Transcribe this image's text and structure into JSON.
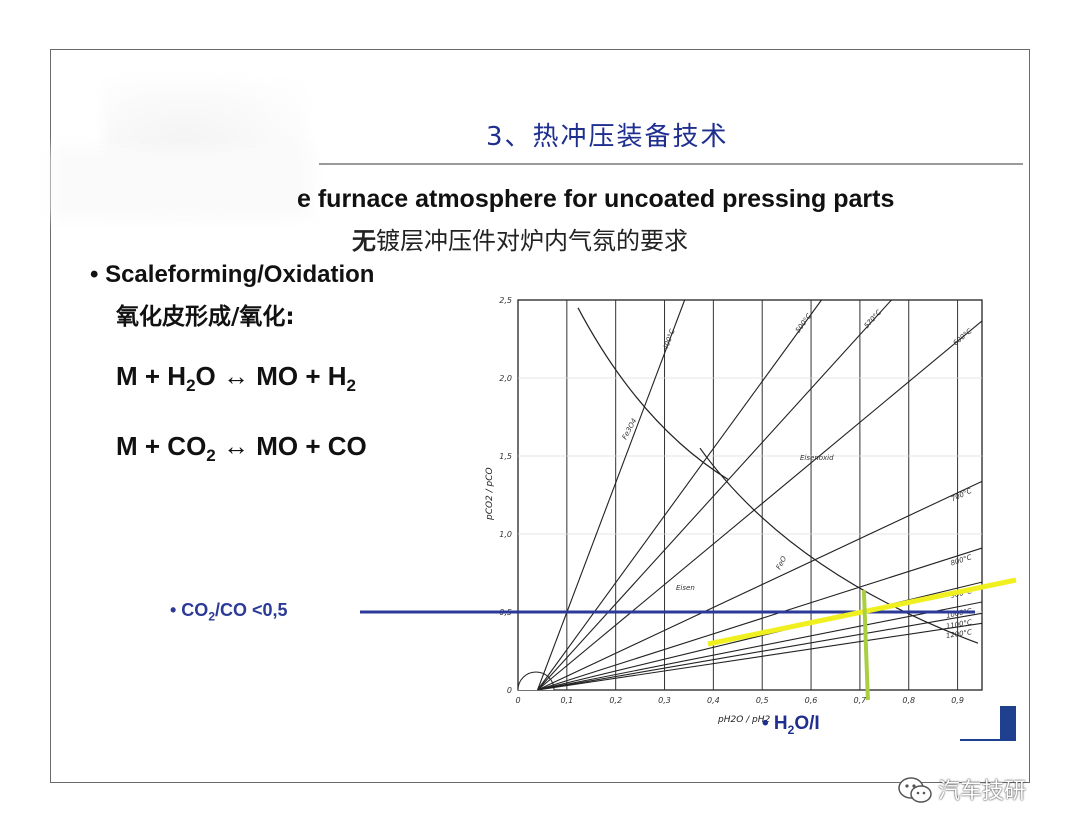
{
  "slide": {
    "title": "3、热冲压装备技术",
    "heading_en": "e furnace atmosphere for uncoated pressing parts",
    "heading_cn_bold": "无",
    "heading_cn_rest": "镀层冲压件对炉内气氛的要求",
    "bullet_en": "• Scaleforming/Oxidation",
    "bullet_cn": "氧化皮形成/氧化:",
    "eq1": {
      "a": "M + H",
      "b": "O ↔ MO + H",
      "sub1": "2",
      "sub2": "2"
    },
    "eq2": {
      "a": "M + CO",
      "b": " ↔ MO + CO",
      "sub1": "2"
    },
    "co2_label": {
      "a": "• CO",
      "sub": "2",
      "b": "/CO <0,5"
    },
    "h2o_label": {
      "a": "• H",
      "sub": "2",
      "b": "O/I"
    }
  },
  "chart_data": {
    "type": "line",
    "xlabel": "pH2O / pH2",
    "ylabel": "pCO2 / pCO",
    "xlim": [
      0,
      0.95
    ],
    "ylim": [
      0,
      2.5
    ],
    "x_ticks": [
      "0",
      "0,1",
      "0,2",
      "0,3",
      "0,4",
      "0,5",
      "0,6",
      "0,7",
      "0,8",
      "0,9"
    ],
    "y_ticks": [
      "0",
      "0,5",
      "1,0",
      "1,5",
      "2,0",
      "2,5"
    ],
    "series": [
      {
        "name": "400°C",
        "slope": 8.3
      },
      {
        "name": "500°C",
        "slope": 4.3
      },
      {
        "name": "570°C",
        "slope": 3.45
      },
      {
        "name": "600°C",
        "slope": 2.6
      },
      {
        "name": "700°C",
        "slope": 1.47
      },
      {
        "name": "800°C",
        "slope": 1.0
      },
      {
        "name": "900°C",
        "slope": 0.76
      },
      {
        "name": "1000°C",
        "slope": 0.62
      },
      {
        "name": "1100°C",
        "slope": 0.54
      },
      {
        "name": "1200°C",
        "slope": 0.47
      }
    ],
    "region_labels": [
      "Eisenoxid",
      "Eisen",
      "FeO",
      "Fe3O4"
    ],
    "annotations": {
      "co2_co_limit": 0.5,
      "h2o_h2_limit": 0.7
    },
    "colors": {
      "limit_line": "#2b3a97",
      "highlight": "#f0f020",
      "vertical": "#a8d040"
    }
  },
  "watermark": {
    "text": "汽车技研",
    "icon": "wechat-icon"
  }
}
